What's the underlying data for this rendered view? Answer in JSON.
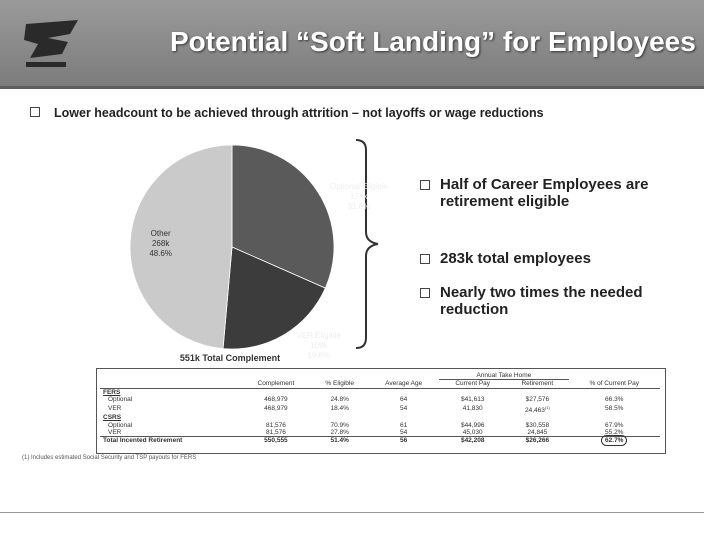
{
  "title": "Potential “Soft Landing” for Employees",
  "bullet": "Lower headcount to be achieved through attrition – not layoffs or wage reductions",
  "chart_data": {
    "type": "pie",
    "caption": "551k Total Complement",
    "categories": [
      "Optional Eligible",
      "VER Eligible",
      "Other"
    ],
    "values": [
      31.6,
      19.8,
      48.6
    ],
    "value_labels": [
      "31.6%",
      "19.8%",
      "48.6%"
    ],
    "count_labels": [
      "174k",
      "109k",
      "268k"
    ],
    "colors": [
      "#5a5a5a",
      "#3c3c3c",
      "#cacaca"
    ]
  },
  "side_bullets": [
    "Half of Career Employees are retirement eligible",
    "283k total employees",
    "Nearly two times the needed reduction"
  ],
  "table": {
    "group_header": "Annual Take Home",
    "headers": [
      "Complement",
      "% Eligible",
      "Average Age",
      "Current Pay",
      "Retirement",
      "% of Current Pay"
    ],
    "sections": [
      {
        "name": "FERS",
        "rows": [
          [
            "Optional",
            "468,979",
            "24.8%",
            "64",
            "$41,613",
            "$27,576",
            "66.3%"
          ],
          [
            "VER",
            "468,979",
            "18.4%",
            "54",
            "41,830",
            "24,463",
            "58.5%"
          ]
        ]
      },
      {
        "name": "CSRS",
        "rows": [
          [
            "Optional",
            "81,576",
            "70.9%",
            "61",
            "$44,996",
            "$30,558",
            "67.9%"
          ],
          [
            "VER",
            "81,576",
            "27.8%",
            "54",
            "45,030",
            "24,845",
            "55.2%"
          ]
        ]
      }
    ],
    "note_ref": "(1)",
    "total": [
      "Total Incented Retirement",
      "550,555",
      "51.4%",
      "56",
      "$42,208",
      "$26,266",
      "62.7%"
    ]
  },
  "footnote": "(1) Includes estimated Social Security and TSP payouts for FERS"
}
